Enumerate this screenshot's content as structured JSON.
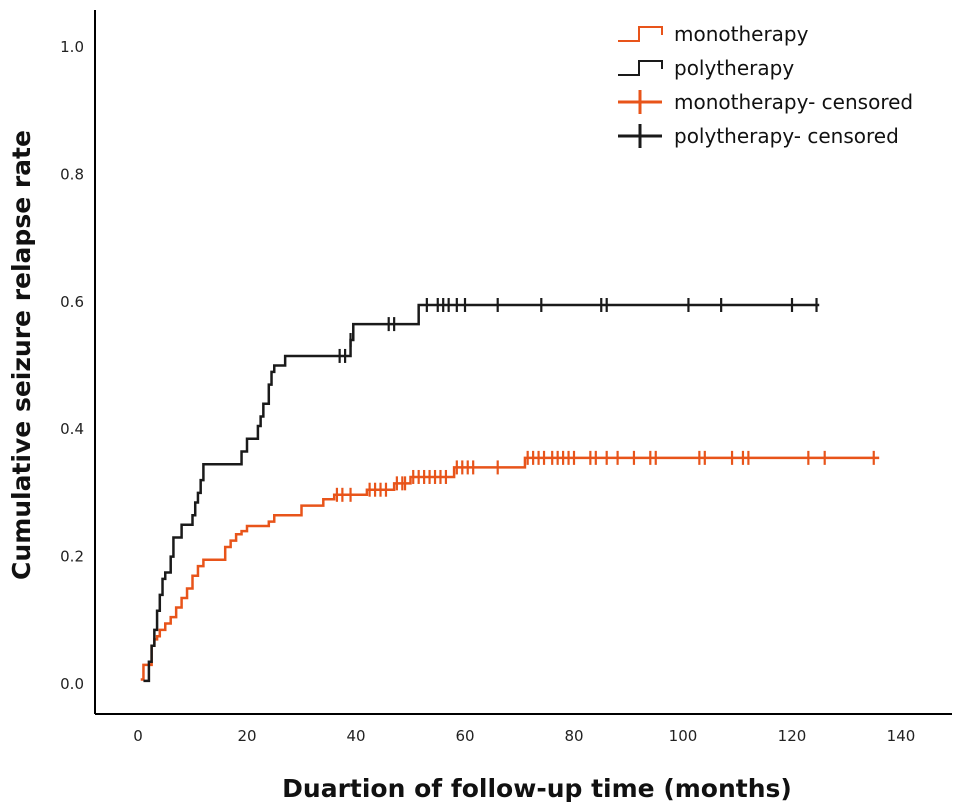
{
  "chart_data": {
    "type": "line",
    "subtype": "kaplan-meier-cumulative-incidence",
    "title": "",
    "xlabel": "Duartion of follow-up time (months)",
    "ylabel": "Cumulative seizure relapse rate",
    "xlim": [
      -4,
      144
    ],
    "ylim": [
      -0.05,
      1.06
    ],
    "xticks": [
      0,
      20,
      40,
      60,
      80,
      100,
      120,
      140
    ],
    "yticks": [
      0.0,
      0.2,
      0.4,
      0.6,
      0.8,
      1.0
    ],
    "xtick_labels": [
      "0",
      "20",
      "40",
      "60",
      "80",
      "100",
      "120",
      "140"
    ],
    "ytick_labels": [
      "0.0",
      "0.2",
      "0.4",
      "0.6",
      "0.8",
      "1.0"
    ],
    "grid": false,
    "legend_position": "top-right",
    "legend": [
      {
        "label": "monotherapy",
        "kind": "step",
        "color": "#e8541a"
      },
      {
        "label": "polytherapy",
        "kind": "step",
        "color": "#1a1a1a"
      },
      {
        "label": "monotherapy- censored",
        "kind": "censor",
        "color": "#e8541a"
      },
      {
        "label": "polytherapy- censored",
        "kind": "censor",
        "color": "#1a1a1a"
      }
    ],
    "series": [
      {
        "name": "monotherapy",
        "color": "#e8541a",
        "steps": [
          [
            0.5,
            0.007
          ],
          [
            1.0,
            0.03
          ],
          [
            2.5,
            0.06
          ],
          [
            3.0,
            0.07
          ],
          [
            3.5,
            0.075
          ],
          [
            4.0,
            0.085
          ],
          [
            5.0,
            0.095
          ],
          [
            6.0,
            0.105
          ],
          [
            7.0,
            0.12
          ],
          [
            8.0,
            0.135
          ],
          [
            9.0,
            0.15
          ],
          [
            10.0,
            0.17
          ],
          [
            11.0,
            0.185
          ],
          [
            12.0,
            0.195
          ],
          [
            16.0,
            0.215
          ],
          [
            17.0,
            0.225
          ],
          [
            18.0,
            0.235
          ],
          [
            19.0,
            0.24
          ],
          [
            20.0,
            0.248
          ],
          [
            24.0,
            0.255
          ],
          [
            25.0,
            0.265
          ],
          [
            30.0,
            0.28
          ],
          [
            34.0,
            0.29
          ],
          [
            36.0,
            0.297
          ],
          [
            42.0,
            0.305
          ],
          [
            47.0,
            0.315
          ],
          [
            50.0,
            0.325
          ],
          [
            58.0,
            0.34
          ],
          [
            71.0,
            0.355
          ],
          [
            136.0,
            0.355
          ]
        ],
        "censored": [
          [
            36.5,
            0.297
          ],
          [
            37.5,
            0.297
          ],
          [
            39.0,
            0.297
          ],
          [
            42.5,
            0.305
          ],
          [
            43.5,
            0.305
          ],
          [
            44.5,
            0.305
          ],
          [
            45.5,
            0.305
          ],
          [
            47.5,
            0.315
          ],
          [
            48.5,
            0.315
          ],
          [
            49.0,
            0.315
          ],
          [
            50.5,
            0.325
          ],
          [
            51.5,
            0.325
          ],
          [
            52.5,
            0.325
          ],
          [
            53.5,
            0.325
          ],
          [
            54.5,
            0.325
          ],
          [
            55.5,
            0.325
          ],
          [
            56.5,
            0.325
          ],
          [
            58.5,
            0.34
          ],
          [
            59.5,
            0.34
          ],
          [
            60.5,
            0.34
          ],
          [
            61.5,
            0.34
          ],
          [
            66.0,
            0.34
          ],
          [
            71.5,
            0.355
          ],
          [
            72.5,
            0.355
          ],
          [
            73.5,
            0.355
          ],
          [
            74.5,
            0.355
          ],
          [
            76.0,
            0.355
          ],
          [
            77.0,
            0.355
          ],
          [
            78.0,
            0.355
          ],
          [
            79.0,
            0.355
          ],
          [
            80.0,
            0.355
          ],
          [
            83.0,
            0.355
          ],
          [
            84.0,
            0.355
          ],
          [
            86.0,
            0.355
          ],
          [
            88.0,
            0.355
          ],
          [
            91.0,
            0.355
          ],
          [
            94.0,
            0.355
          ],
          [
            95.0,
            0.355
          ],
          [
            103.0,
            0.355
          ],
          [
            104.0,
            0.355
          ],
          [
            109.0,
            0.355
          ],
          [
            111.0,
            0.355
          ],
          [
            112.0,
            0.355
          ],
          [
            123.0,
            0.355
          ],
          [
            126.0,
            0.355
          ],
          [
            135.0,
            0.355
          ]
        ]
      },
      {
        "name": "polytherapy",
        "color": "#1a1a1a",
        "steps": [
          [
            1.0,
            0.005
          ],
          [
            2.0,
            0.035
          ],
          [
            2.5,
            0.06
          ],
          [
            3.0,
            0.085
          ],
          [
            3.5,
            0.115
          ],
          [
            4.0,
            0.14
          ],
          [
            4.5,
            0.165
          ],
          [
            5.0,
            0.175
          ],
          [
            6.0,
            0.2
          ],
          [
            6.5,
            0.23
          ],
          [
            8.0,
            0.25
          ],
          [
            10.0,
            0.265
          ],
          [
            10.5,
            0.285
          ],
          [
            11.0,
            0.3
          ],
          [
            11.5,
            0.32
          ],
          [
            12.0,
            0.345
          ],
          [
            19.0,
            0.365
          ],
          [
            20.0,
            0.385
          ],
          [
            22.0,
            0.405
          ],
          [
            22.5,
            0.42
          ],
          [
            23.0,
            0.44
          ],
          [
            24.0,
            0.47
          ],
          [
            24.5,
            0.49
          ],
          [
            25.0,
            0.5
          ],
          [
            27.0,
            0.515
          ],
          [
            39.0,
            0.54
          ],
          [
            39.5,
            0.565
          ],
          [
            51.5,
            0.595
          ],
          [
            125.0,
            0.595
          ]
        ],
        "censored": [
          [
            37.0,
            0.515
          ],
          [
            38.0,
            0.515
          ],
          [
            39.0,
            0.54
          ],
          [
            46.0,
            0.565
          ],
          [
            47.0,
            0.565
          ],
          [
            53.0,
            0.595
          ],
          [
            55.0,
            0.595
          ],
          [
            56.0,
            0.595
          ],
          [
            57.0,
            0.595
          ],
          [
            58.5,
            0.595
          ],
          [
            60.0,
            0.595
          ],
          [
            66.0,
            0.595
          ],
          [
            74.0,
            0.595
          ],
          [
            85.0,
            0.595
          ],
          [
            86.0,
            0.595
          ],
          [
            101.0,
            0.595
          ],
          [
            107.0,
            0.595
          ],
          [
            120.0,
            0.595
          ],
          [
            124.5,
            0.595
          ]
        ]
      }
    ]
  }
}
